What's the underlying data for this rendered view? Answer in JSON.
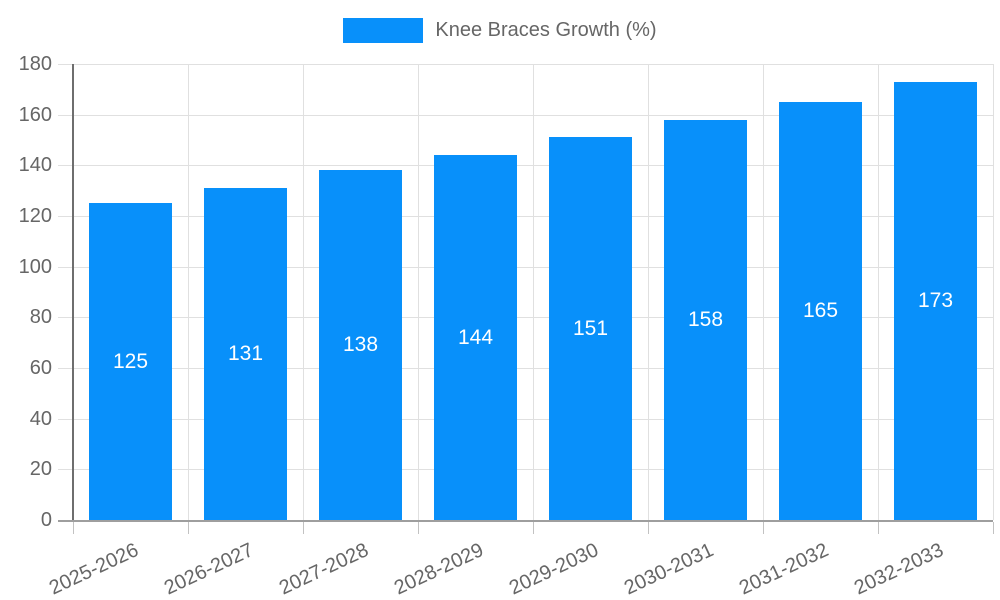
{
  "legend": {
    "label": "Knee Braces Growth (%)"
  },
  "colors": {
    "bar": "#0890FA",
    "axis_text": "#666666",
    "bar_label_text": "#ffffff",
    "grid": "#e0e0e0",
    "y_axis_line": "#6e6e6e",
    "x_axis_line": "#9e9e9e",
    "tick": "#c2c2c2"
  },
  "chart_data": {
    "type": "bar",
    "title": "Knee Braces Growth (%)",
    "categories": [
      "2025-2026",
      "2026-2027",
      "2027-2028",
      "2028-2029",
      "2029-2030",
      "2030-2031",
      "2031-2032",
      "2032-2033"
    ],
    "values": [
      125,
      131,
      138,
      144,
      151,
      158,
      165,
      173
    ],
    "xlabel": "",
    "ylabel": "",
    "ylim": [
      0,
      180
    ],
    "ytick_step": 20,
    "grid": true,
    "legend_position": "top-center",
    "value_labels": "inside-center-white"
  }
}
